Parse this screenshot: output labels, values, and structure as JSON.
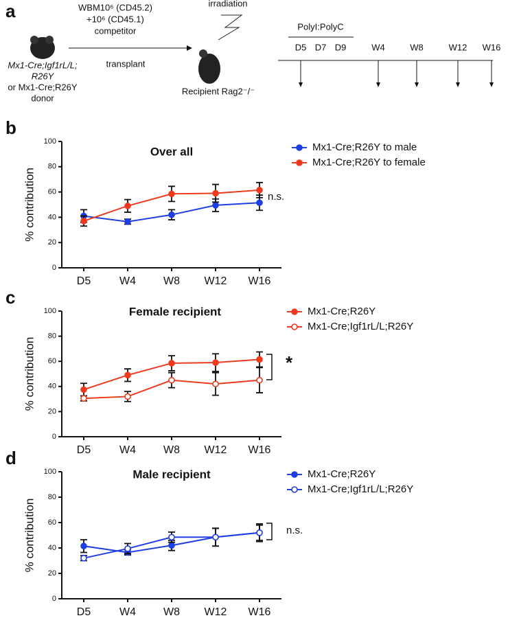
{
  "diagram": {
    "panel_label": "a",
    "donor_lines": [
      "Mx1-Cre;Igf1rL/L;",
      "R26Y",
      "or Mx1-Cre;R26Y",
      "donor"
    ],
    "cells_lines": [
      "WBM10⁶ (CD45.2)",
      "+10⁶ (CD45.1)",
      "competitor"
    ],
    "transplant": "transplant",
    "irradiation": "irradiation",
    "recipient": "Recipient Rag2⁻/⁻",
    "treatment": "PolyI:PolyC",
    "timepoints": [
      "D5",
      "D7",
      "D9",
      "W4",
      "W8",
      "W12",
      "W16"
    ]
  },
  "chart_data": [
    {
      "type": "line",
      "panel_label": "b",
      "title": "Over all",
      "ylabel": "% contribution",
      "categories": [
        "D5",
        "W4",
        "W8",
        "W12",
        "W16"
      ],
      "ylim": [
        0,
        100
      ],
      "yticks": [
        0,
        20,
        40,
        60,
        80,
        100
      ],
      "series": [
        {
          "name": "Mx1-Cre;R26Y to male",
          "color": "#1f3fe0",
          "marker": "filled",
          "values": [
            41,
            36.5,
            42,
            49.5,
            51.5
          ],
          "errors": [
            5,
            2,
            4,
            5,
            6
          ]
        },
        {
          "name": "Mx1-Cre;R26Y to female",
          "color": "#ee3a1f",
          "marker": "filled",
          "values": [
            37,
            49,
            58.5,
            59,
            61.5
          ],
          "errors": [
            4,
            5,
            6,
            7,
            6
          ]
        }
      ],
      "annotation": "n.s."
    },
    {
      "type": "line",
      "panel_label": "c",
      "title": "Female recipient",
      "ylabel": "% contribution",
      "categories": [
        "D5",
        "W4",
        "W8",
        "W12",
        "W16"
      ],
      "ylim": [
        0,
        100
      ],
      "yticks": [
        0,
        20,
        40,
        60,
        80,
        100
      ],
      "series": [
        {
          "name": "Mx1-Cre;R26Y",
          "color": "#ee3a1f",
          "marker": "filled",
          "values": [
            37.5,
            49,
            58.5,
            59,
            61.5
          ],
          "errors": [
            5,
            5,
            6,
            7,
            6
          ]
        },
        {
          "name": "Mx1-Cre;Igf1rL/L;R26Y",
          "color": "#ee3a1f",
          "marker": "open",
          "values": [
            30.5,
            32,
            45,
            42,
            45
          ],
          "errors": [
            2,
            4,
            6,
            9,
            10
          ]
        }
      ],
      "annotation": "*"
    },
    {
      "type": "line",
      "panel_label": "d",
      "title": "Male recipient",
      "ylabel": "% contribution",
      "categories": [
        "D5",
        "W4",
        "W8",
        "W12",
        "W16"
      ],
      "ylim": [
        0,
        100
      ],
      "yticks": [
        0,
        20,
        40,
        60,
        80,
        100
      ],
      "series": [
        {
          "name": "Mx1-Cre;R26Y",
          "color": "#1f3fe0",
          "marker": "filled",
          "values": [
            41.5,
            36.5,
            42,
            48.5,
            52
          ],
          "errors": [
            5,
            2,
            4,
            7,
            7
          ]
        },
        {
          "name": "Mx1-Cre;Igf1rL/L;R26Y",
          "color": "#1f3fe0",
          "marker": "open",
          "values": [
            32,
            39.5,
            48.5,
            48.5,
            52
          ],
          "errors": [
            2,
            4,
            4,
            7,
            6
          ]
        }
      ],
      "annotation": "n.s."
    }
  ]
}
